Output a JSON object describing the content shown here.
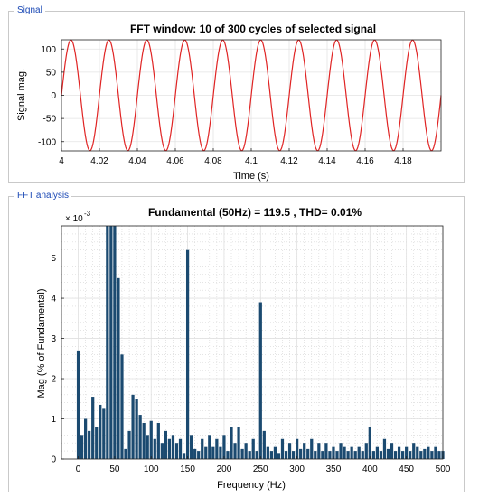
{
  "panels": {
    "signal": {
      "title": "Signal"
    },
    "fft": {
      "title": "FFT analysis"
    }
  },
  "colors": {
    "signal_line": "#e02424",
    "bar": "#1b4a70",
    "panel_title": "#1a48b5"
  },
  "chart_data": [
    {
      "type": "line",
      "title": "FFT window: 10 of 300 cycles of selected signal",
      "xlabel": "Time (s)",
      "ylabel": "Signal mag.",
      "xlim": [
        4,
        4.2
      ],
      "ylim": [
        -120,
        120
      ],
      "x_ticks": [
        4,
        4.02,
        4.04,
        4.06,
        4.08,
        4.1,
        4.12,
        4.14,
        4.16,
        4.18
      ],
      "x_tick_labels": [
        "4",
        "4.02",
        "4.04",
        "4.06",
        "4.08",
        "4.1",
        "4.12",
        "4.14",
        "4.16",
        "4.18"
      ],
      "y_ticks": [
        -100,
        -50,
        0,
        50,
        100
      ],
      "y_tick_labels": [
        "-100",
        "-50",
        "0",
        "50",
        "100"
      ],
      "grid": true,
      "series": [
        {
          "function": "sine",
          "amplitude": 119.5,
          "frequency_hz": 50,
          "phase_deg": 0
        }
      ]
    },
    {
      "type": "bar",
      "title": "Fundamental (50Hz) = 119.5 , THD= 0.01%",
      "xlabel": "Frequency (Hz)",
      "ylabel": "Mag (% of Fundamental)",
      "xlim": [
        -23,
        500
      ],
      "ylim": [
        0,
        0.0058
      ],
      "y_exponent_label": "× 10",
      "y_exponent_power": "-3",
      "x_ticks": [
        0,
        50,
        100,
        150,
        200,
        250,
        300,
        350,
        400,
        450,
        500
      ],
      "x_tick_labels": [
        "0",
        "50",
        "100",
        "150",
        "200",
        "250",
        "300",
        "350",
        "400",
        "450",
        "500"
      ],
      "y_ticks": [
        0,
        0.001,
        0.002,
        0.003,
        0.004,
        0.005
      ],
      "y_tick_labels": [
        "0",
        "1",
        "2",
        "3",
        "4",
        "5"
      ],
      "grid": true,
      "bar_spacing_hz": 5,
      "x": [
        0,
        5,
        10,
        15,
        20,
        25,
        30,
        35,
        40,
        45,
        50,
        55,
        60,
        65,
        70,
        75,
        80,
        85,
        90,
        95,
        100,
        105,
        110,
        115,
        120,
        125,
        130,
        135,
        140,
        145,
        150,
        155,
        160,
        165,
        170,
        175,
        180,
        185,
        190,
        195,
        200,
        205,
        210,
        215,
        220,
        225,
        230,
        235,
        240,
        245,
        250,
        255,
        260,
        265,
        270,
        275,
        280,
        285,
        290,
        295,
        300,
        305,
        310,
        315,
        320,
        325,
        330,
        335,
        340,
        345,
        350,
        355,
        360,
        365,
        370,
        375,
        380,
        385,
        390,
        395,
        400,
        405,
        410,
        415,
        420,
        425,
        430,
        435,
        440,
        445,
        450,
        455,
        460,
        465,
        470,
        475,
        480,
        485,
        490,
        495,
        500
      ],
      "values": [
        0.0027,
        0.0006,
        0.001,
        0.0007,
        0.00155,
        0.0008,
        0.00135,
        0.00125,
        0.0058,
        0.0058,
        0.0058,
        0.0045,
        0.0026,
        0.00025,
        0.0007,
        0.0016,
        0.0015,
        0.0011,
        0.0009,
        0.0006,
        0.00095,
        0.0005,
        0.0009,
        0.0004,
        0.0007,
        0.0005,
        0.0006,
        0.0004,
        0.0005,
        0.00015,
        0.0052,
        0.0006,
        0.00025,
        0.0002,
        0.0005,
        0.0003,
        0.0006,
        0.0003,
        0.0005,
        0.0003,
        0.0006,
        0.0002,
        0.0008,
        0.0004,
        0.0008,
        0.00025,
        0.0004,
        0.0002,
        0.0005,
        0.0002,
        0.0039,
        0.0007,
        0.0003,
        0.0002,
        0.0003,
        0.00015,
        0.0005,
        0.0002,
        0.0004,
        0.0002,
        0.0005,
        0.00025,
        0.0004,
        0.00025,
        0.0005,
        0.0002,
        0.0004,
        0.0002,
        0.0004,
        0.0002,
        0.0003,
        0.0002,
        0.0004,
        0.0003,
        0.0002,
        0.0003,
        0.0002,
        0.0003,
        0.0002,
        0.0004,
        0.0008,
        0.0002,
        0.0003,
        0.0002,
        0.0005,
        0.00025,
        0.0004,
        0.0002,
        0.0003,
        0.0002,
        0.0003,
        0.0002,
        0.0004,
        0.0003,
        0.0002,
        0.00025,
        0.0003,
        0.0002,
        0.0003,
        0.0002,
        0.0002
      ]
    }
  ]
}
